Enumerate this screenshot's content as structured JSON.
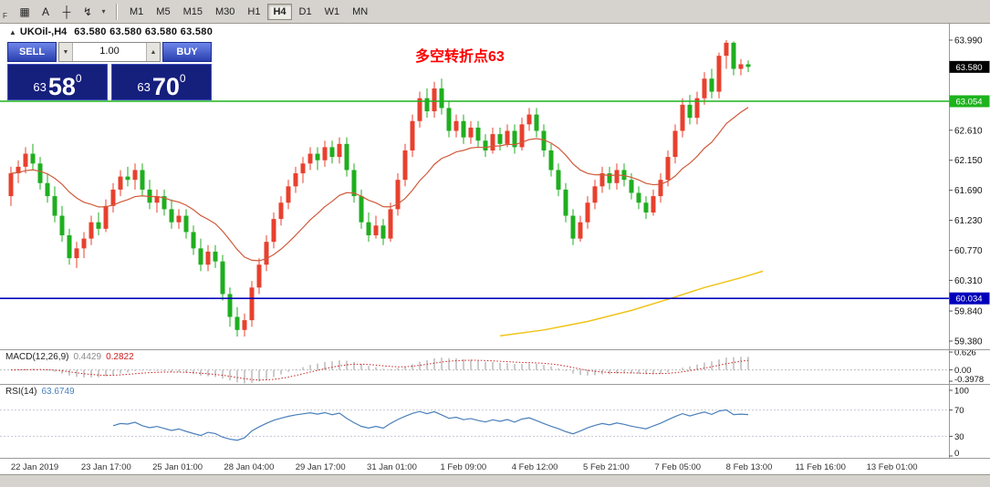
{
  "toolbar": {
    "dock_label": "F",
    "tools": [
      {
        "name": "chart-window-icon",
        "glyph": "▦"
      },
      {
        "name": "text-annotation-icon",
        "glyph": "A"
      },
      {
        "name": "crosshair-icon",
        "glyph": "┼"
      },
      {
        "name": "drawing-tools-icon",
        "glyph": "↯"
      },
      {
        "name": "dropdown-caret-icon",
        "glyph": "▾"
      }
    ],
    "timeframes": [
      "M1",
      "M5",
      "M15",
      "M30",
      "H1",
      "H4",
      "D1",
      "W1",
      "MN"
    ],
    "active_timeframe": "H4"
  },
  "chart_header": {
    "collapse_icon": "▲",
    "symbol": "UKOil-,H4",
    "ohlc": "63.580 63.580 63.580 63.580"
  },
  "one_click": {
    "sell_label": "SELL",
    "buy_label": "BUY",
    "lot_value": "1.00",
    "spin_down": "▼",
    "spin_up": "▲",
    "bid": {
      "small": "63",
      "big": "58",
      "sup": "0"
    },
    "ask": {
      "small": "63",
      "big": "70",
      "sup": "0"
    }
  },
  "annotation": {
    "text": "多空转折点63",
    "color": "#ff0000"
  },
  "price_axis": {
    "ticks": [
      "63.990",
      "62.610",
      "62.150",
      "61.690",
      "61.230",
      "60.770",
      "60.310",
      "59.840",
      "59.380"
    ],
    "tags": [
      {
        "label": "63.580",
        "price": 63.58,
        "bg": "#000000"
      },
      {
        "label": "63.054",
        "price": 63.054,
        "bg": "#1db31d"
      },
      {
        "label": "60.034",
        "price": 60.034,
        "bg": "#0000bb"
      }
    ]
  },
  "chart_data": {
    "type": "candlestick",
    "symbol": "UKOil-",
    "timeframe": "H4",
    "ylim": [
      59.38,
      63.99
    ],
    "bull_color": "#e8402e",
    "bear_color": "#1fae1f",
    "hlines": [
      {
        "price": 63.054,
        "color": "#1db31d"
      },
      {
        "price": 60.034,
        "color": "#0000bb"
      }
    ],
    "ma_period": 18,
    "ma_color": "#d05a3a",
    "slow_line": {
      "color": "#efc419",
      "points": [
        [
          67,
          59.46
        ],
        [
          73,
          59.55
        ],
        [
          79,
          59.68
        ],
        [
          85,
          59.85
        ],
        [
          90,
          60.02
        ],
        [
          95,
          60.2
        ],
        [
          100,
          60.35
        ],
        [
          103,
          60.45
        ]
      ]
    },
    "macd_params": {
      "fast": 12,
      "slow": 26,
      "signal": 9
    },
    "rsi_period": 14,
    "candles": [
      [
        61.6,
        62.05,
        61.45,
        61.95
      ],
      [
        61.95,
        62.15,
        61.8,
        62.05
      ],
      [
        62.05,
        62.35,
        61.95,
        62.25
      ],
      [
        62.25,
        62.4,
        62.0,
        62.1
      ],
      [
        62.1,
        62.2,
        61.7,
        61.8
      ],
      [
        61.8,
        61.95,
        61.5,
        61.6
      ],
      [
        61.6,
        61.75,
        61.2,
        61.3
      ],
      [
        61.3,
        61.45,
        60.9,
        61.0
      ],
      [
        61.0,
        61.1,
        60.55,
        60.65
      ],
      [
        60.65,
        60.9,
        60.5,
        60.8
      ],
      [
        60.8,
        61.05,
        60.65,
        60.95
      ],
      [
        60.95,
        61.3,
        60.85,
        61.2
      ],
      [
        61.2,
        61.35,
        61.0,
        61.1
      ],
      [
        61.1,
        61.55,
        61.05,
        61.45
      ],
      [
        61.45,
        61.8,
        61.35,
        61.7
      ],
      [
        61.7,
        62.0,
        61.6,
        61.9
      ],
      [
        61.9,
        62.05,
        61.75,
        61.85
      ],
      [
        61.85,
        62.1,
        61.7,
        62.0
      ],
      [
        62.0,
        62.1,
        61.6,
        61.7
      ],
      [
        61.7,
        61.85,
        61.4,
        61.5
      ],
      [
        61.5,
        61.7,
        61.35,
        61.6
      ],
      [
        61.6,
        61.7,
        61.3,
        61.4
      ],
      [
        61.4,
        61.55,
        61.1,
        61.2
      ],
      [
        61.2,
        61.4,
        61.1,
        61.3
      ],
      [
        61.3,
        61.4,
        60.95,
        61.05
      ],
      [
        61.05,
        61.15,
        60.7,
        60.8
      ],
      [
        60.8,
        60.95,
        60.45,
        60.55
      ],
      [
        60.55,
        60.85,
        60.45,
        60.75
      ],
      [
        60.75,
        60.85,
        60.5,
        60.6
      ],
      [
        60.6,
        60.7,
        60.0,
        60.1
      ],
      [
        60.1,
        60.2,
        59.6,
        59.75
      ],
      [
        59.75,
        59.9,
        59.45,
        59.55
      ],
      [
        59.55,
        59.8,
        59.45,
        59.7
      ],
      [
        59.7,
        60.3,
        59.6,
        60.2
      ],
      [
        60.2,
        60.65,
        60.1,
        60.55
      ],
      [
        60.55,
        61.0,
        60.45,
        60.9
      ],
      [
        60.9,
        61.35,
        60.8,
        61.25
      ],
      [
        61.25,
        61.6,
        61.15,
        61.5
      ],
      [
        61.5,
        61.85,
        61.4,
        61.75
      ],
      [
        61.75,
        62.05,
        61.65,
        61.95
      ],
      [
        61.95,
        62.2,
        61.8,
        62.1
      ],
      [
        62.1,
        62.35,
        62.0,
        62.25
      ],
      [
        62.25,
        62.35,
        62.0,
        62.15
      ],
      [
        62.15,
        62.45,
        62.05,
        62.35
      ],
      [
        62.35,
        62.45,
        62.1,
        62.2
      ],
      [
        62.2,
        62.5,
        62.1,
        62.4
      ],
      [
        62.4,
        62.5,
        61.9,
        62.0
      ],
      [
        62.0,
        62.1,
        61.5,
        61.6
      ],
      [
        61.6,
        61.7,
        61.1,
        61.2
      ],
      [
        61.2,
        61.35,
        60.9,
        61.0
      ],
      [
        61.0,
        61.3,
        60.95,
        61.15
      ],
      [
        61.15,
        61.25,
        60.85,
        60.95
      ],
      [
        60.95,
        61.5,
        60.9,
        61.4
      ],
      [
        61.4,
        61.95,
        61.3,
        61.85
      ],
      [
        61.85,
        62.4,
        61.75,
        62.3
      ],
      [
        62.3,
        62.85,
        62.2,
        62.75
      ],
      [
        62.75,
        63.2,
        62.65,
        63.1
      ],
      [
        63.1,
        63.25,
        62.8,
        62.9
      ],
      [
        62.9,
        63.35,
        62.8,
        63.25
      ],
      [
        63.25,
        63.4,
        62.85,
        62.95
      ],
      [
        62.95,
        63.05,
        62.5,
        62.6
      ],
      [
        62.6,
        62.85,
        62.5,
        62.75
      ],
      [
        62.75,
        62.85,
        62.4,
        62.5
      ],
      [
        62.5,
        62.75,
        62.4,
        62.65
      ],
      [
        62.65,
        62.75,
        62.35,
        62.45
      ],
      [
        62.45,
        62.55,
        62.2,
        62.3
      ],
      [
        62.3,
        62.65,
        62.25,
        62.55
      ],
      [
        62.55,
        62.65,
        62.3,
        62.4
      ],
      [
        62.4,
        62.7,
        62.35,
        62.6
      ],
      [
        62.6,
        62.7,
        62.25,
        62.35
      ],
      [
        62.35,
        62.8,
        62.3,
        62.7
      ],
      [
        62.7,
        62.95,
        62.6,
        62.85
      ],
      [
        62.85,
        62.95,
        62.5,
        62.6
      ],
      [
        62.6,
        62.7,
        62.2,
        62.3
      ],
      [
        62.3,
        62.4,
        61.9,
        62.0
      ],
      [
        62.0,
        62.1,
        61.6,
        61.7
      ],
      [
        61.7,
        61.8,
        61.2,
        61.3
      ],
      [
        61.3,
        61.4,
        60.85,
        60.95
      ],
      [
        60.95,
        61.3,
        60.9,
        61.2
      ],
      [
        61.2,
        61.6,
        61.1,
        61.5
      ],
      [
        61.5,
        61.85,
        61.4,
        61.75
      ],
      [
        61.75,
        62.05,
        61.65,
        61.95
      ],
      [
        61.95,
        62.05,
        61.7,
        61.8
      ],
      [
        61.8,
        62.1,
        61.7,
        62.0
      ],
      [
        62.0,
        62.1,
        61.75,
        61.85
      ],
      [
        61.85,
        61.95,
        61.55,
        61.65
      ],
      [
        61.65,
        61.75,
        61.4,
        61.5
      ],
      [
        61.5,
        61.6,
        61.25,
        61.35
      ],
      [
        61.35,
        61.7,
        61.3,
        61.6
      ],
      [
        61.6,
        61.95,
        61.5,
        61.85
      ],
      [
        61.85,
        62.3,
        61.75,
        62.2
      ],
      [
        62.2,
        62.7,
        62.1,
        62.6
      ],
      [
        62.6,
        63.1,
        62.5,
        63.0
      ],
      [
        63.0,
        63.15,
        62.7,
        62.8
      ],
      [
        62.8,
        63.2,
        62.7,
        63.1
      ],
      [
        63.1,
        63.5,
        63.0,
        63.4
      ],
      [
        63.4,
        63.55,
        63.1,
        63.2
      ],
      [
        63.2,
        63.8,
        63.1,
        63.75
      ],
      [
        63.75,
        63.99,
        63.55,
        63.95
      ],
      [
        63.95,
        63.97,
        63.45,
        63.55
      ],
      [
        63.55,
        63.7,
        63.45,
        63.62
      ],
      [
        63.62,
        63.68,
        63.5,
        63.58
      ]
    ]
  },
  "macd_panel": {
    "label": "MACD(12,26,9)",
    "value": "0.4429",
    "signal_value": "0.2822",
    "histogram_color": "#9a9a9a",
    "signal_color": "#cc2222",
    "ticks": [
      {
        "label": "0.626",
        "v": 0.626
      },
      {
        "label": "0.00",
        "v": 0
      },
      {
        "label": "-0.3978",
        "v": -0.3978
      }
    ]
  },
  "rsi_panel": {
    "label": "RSI(14)",
    "value": "63.6749",
    "line_color": "#4a7fbb",
    "levels": [
      70,
      30
    ],
    "ticks": [
      {
        "label": "100",
        "v": 100
      },
      {
        "label": "70",
        "v": 70
      },
      {
        "label": "30",
        "v": 30
      },
      {
        "label": "0",
        "v": 0
      }
    ]
  },
  "time_axis": {
    "labels": [
      "22 Jan 2019",
      "23 Jan 17:00",
      "25 Jan 01:00",
      "28 Jan 04:00",
      "29 Jan 17:00",
      "31 Jan 01:00",
      "1 Feb 09:00",
      "4 Feb 12:00",
      "5 Feb 21:00",
      "7 Feb 05:00",
      "8 Feb 13:00",
      "11 Feb 16:00",
      "13 Feb 01:00"
    ]
  }
}
